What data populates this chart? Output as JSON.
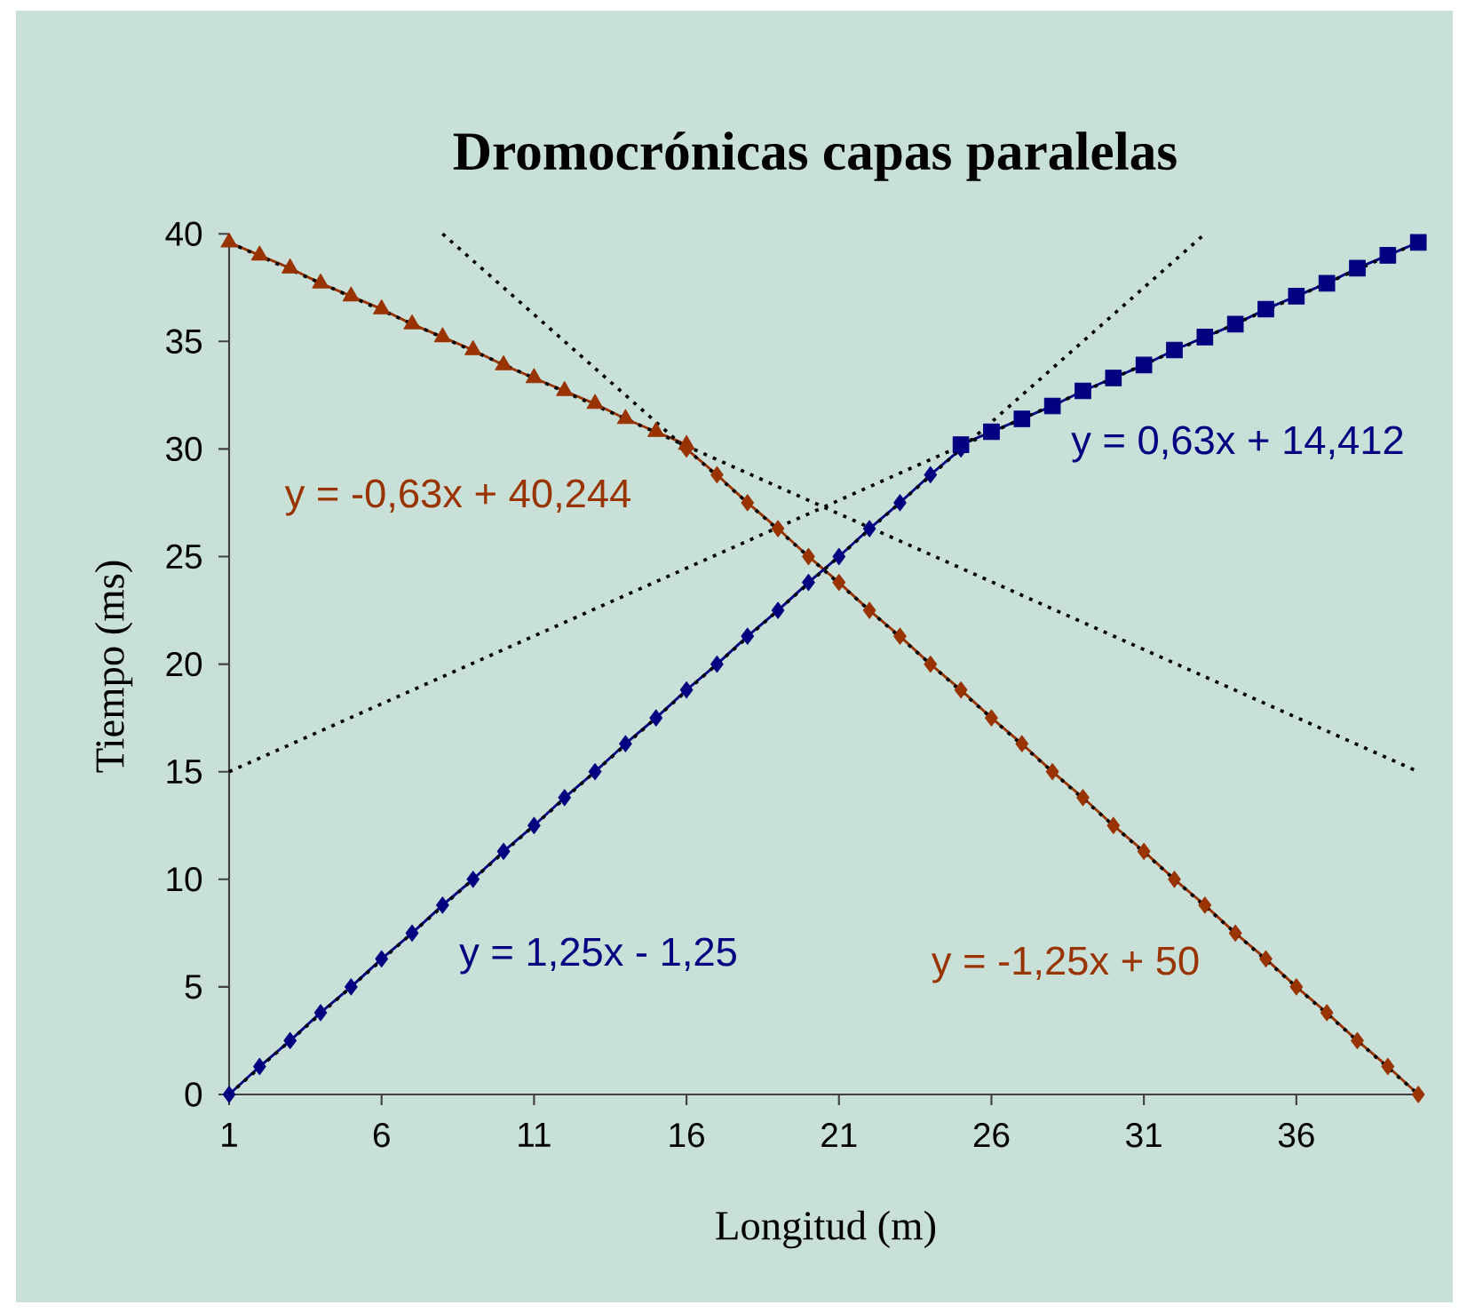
{
  "chart_data": {
    "type": "line",
    "title": "Dromocrónicas capas paralelas",
    "xlabel": "Longitud (m)",
    "ylabel": "Tiempo (ms)",
    "xlim": [
      1,
      40
    ],
    "ylim": [
      0,
      40
    ],
    "xticks": [
      1,
      6,
      11,
      16,
      21,
      26,
      31,
      36
    ],
    "yticks": [
      0,
      5,
      10,
      15,
      20,
      25,
      30,
      35,
      40
    ],
    "series": [
      {
        "color": "#993300",
        "marker": "triangle",
        "line_style": "solid",
        "x": [
          1,
          2,
          3,
          4,
          5,
          6,
          7,
          8,
          9,
          10,
          11,
          12,
          13,
          14,
          15,
          16
        ],
        "values": [
          39.6,
          39.0,
          38.4,
          37.7,
          37.1,
          36.5,
          35.8,
          35.2,
          34.6,
          33.9,
          33.3,
          32.7,
          32.1,
          31.4,
          30.8,
          30.2
        ]
      },
      {
        "color": "#993300",
        "marker": "diamond",
        "line_style": "solid",
        "x": [
          16,
          17,
          18,
          19,
          20,
          21,
          22,
          23,
          24,
          25,
          26,
          27,
          28,
          29,
          30,
          31,
          32,
          33,
          34,
          35,
          36,
          37,
          38,
          39,
          40
        ],
        "values": [
          30.0,
          28.8,
          27.5,
          26.3,
          25.0,
          23.8,
          22.5,
          21.3,
          20.0,
          18.8,
          17.5,
          16.3,
          15.0,
          13.8,
          12.5,
          11.3,
          10.0,
          8.8,
          7.5,
          6.3,
          5.0,
          3.8,
          2.5,
          1.3,
          0.0
        ]
      },
      {
        "color": "#000080",
        "marker": "diamond",
        "line_style": "solid",
        "x": [
          1,
          2,
          3,
          4,
          5,
          6,
          7,
          8,
          9,
          10,
          11,
          12,
          13,
          14,
          15,
          16,
          17,
          18,
          19,
          20,
          21,
          22,
          23,
          24,
          25
        ],
        "values": [
          0.0,
          1.3,
          2.5,
          3.8,
          5.0,
          6.3,
          7.5,
          8.8,
          10.0,
          11.3,
          12.5,
          13.8,
          15.0,
          16.3,
          17.5,
          18.8,
          20.0,
          21.3,
          22.5,
          23.8,
          25.0,
          26.3,
          27.5,
          28.8,
          30.0
        ]
      },
      {
        "color": "#000080",
        "marker": "square",
        "line_style": "solid",
        "x": [
          25,
          26,
          27,
          28,
          29,
          30,
          31,
          32,
          33,
          34,
          35,
          36,
          37,
          38,
          39,
          40
        ],
        "values": [
          30.2,
          30.8,
          31.4,
          32.0,
          32.7,
          33.3,
          33.9,
          34.6,
          35.2,
          35.8,
          36.5,
          37.1,
          37.7,
          38.4,
          39.0,
          39.6
        ]
      },
      {
        "type": "line",
        "color": "#000000",
        "marker": "none",
        "line_style": "dotted",
        "x": [
          1,
          40
        ],
        "values": [
          39.6,
          15.0
        ]
      },
      {
        "type": "line",
        "color": "#000000",
        "marker": "none",
        "line_style": "dotted",
        "x": [
          8,
          40
        ],
        "values": [
          40.0,
          0.0
        ]
      },
      {
        "type": "line",
        "color": "#000000",
        "marker": "none",
        "line_style": "dotted",
        "x": [
          1,
          33
        ],
        "values": [
          0.0,
          40.0
        ]
      },
      {
        "type": "line",
        "color": "#000000",
        "marker": "none",
        "line_style": "dotted",
        "x": [
          1,
          40
        ],
        "values": [
          15.0,
          39.6
        ]
      }
    ],
    "annotations": [
      "y = -0,63x + 40,244",
      "y = -1,25x + 50",
      "y = 1,25x - 1,25",
      "y = 0,63x + 14,412"
    ]
  }
}
